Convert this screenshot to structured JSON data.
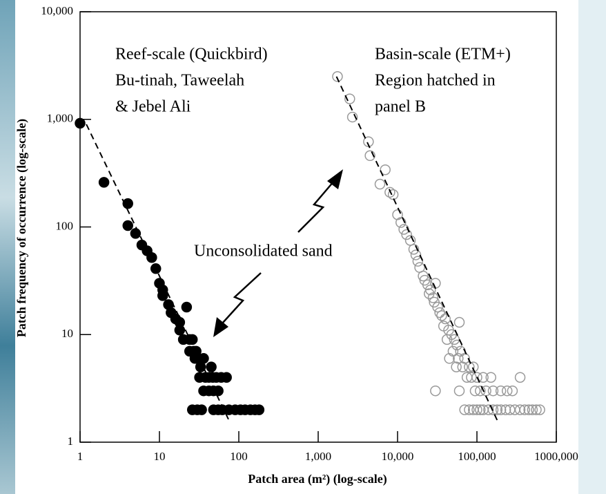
{
  "chart_data": {
    "type": "scatter",
    "xlabel": "Patch area (m²) (log-scale)",
    "ylabel": "Patch frequency of occurrence (log-scale)",
    "xscale": "log",
    "yscale": "log",
    "xlim": [
      1,
      1000000
    ],
    "ylim": [
      1,
      10000
    ],
    "xticks": [
      1,
      10,
      100,
      {
        "value": 1000,
        "label": "1,000"
      },
      {
        "value": 10000,
        "label": "10,000"
      },
      {
        "value": 100000,
        "label": "100,000"
      },
      {
        "value": 1000000,
        "label": "1000,000"
      }
    ],
    "yticks": [
      1,
      10,
      100,
      {
        "value": 1000,
        "label": "1,000"
      },
      {
        "value": 10000,
        "label": "10,000"
      }
    ],
    "annotations": [
      {
        "lines": [
          "Reef-scale (Quickbird)",
          "Bu-tinah, Taweelah",
          "& Jebel Ali"
        ]
      },
      {
        "lines": [
          "Basin-scale (ETM+)",
          "Region hatched in",
          "panel B"
        ]
      },
      {
        "lines": [
          "Unconsolidated sand"
        ]
      }
    ],
    "series": [
      {
        "color": "#000000",
        "filled": true,
        "x": [
          1,
          2,
          4,
          4,
          5,
          6,
          7,
          8,
          9,
          10,
          11,
          11,
          13,
          14,
          16,
          18,
          22,
          18,
          20,
          24,
          26,
          24,
          27,
          29,
          30,
          28,
          33,
          36,
          45,
          32,
          38,
          42,
          47,
          52,
          60,
          70,
          36,
          42,
          48,
          55,
          26,
          30,
          34,
          48,
          55,
          62,
          75,
          90,
          105,
          120,
          140,
          160,
          180
        ],
        "values": [
          920,
          260,
          165,
          103,
          87,
          68,
          60,
          52,
          41,
          30,
          26,
          23,
          19,
          16,
          14,
          13,
          18,
          11,
          9,
          9,
          9,
          7,
          7,
          7,
          6,
          6,
          5,
          6,
          5,
          4,
          4,
          4,
          4,
          4,
          4,
          4,
          3,
          3,
          3,
          3,
          2,
          2,
          2,
          2,
          2,
          2,
          2,
          2,
          2,
          2,
          2,
          2,
          2
        ]
      },
      {
        "color": "#999999",
        "filled": false,
        "x": [
          1750,
          2500,
          2700,
          4300,
          4500,
          7000,
          6000,
          8000,
          8800,
          10000,
          11000,
          12000,
          13000,
          14500,
          16000,
          17000,
          18000,
          19000,
          21000,
          22000,
          24000,
          26000,
          25000,
          28000,
          30000,
          29000,
          32000,
          34000,
          36000,
          40000,
          38000,
          44000,
          48000,
          42000,
          52000,
          56000,
          60000,
          50000,
          62000,
          70000,
          45000,
          58000,
          80000,
          66000,
          90000,
          55000,
          75000,
          100000,
          120000,
          150000,
          85000,
          350000,
          30000,
          60000,
          95000,
          110000,
          130000,
          160000,
          200000,
          240000,
          280000,
          70000,
          80000,
          90000,
          100000,
          110000,
          120000,
          140000,
          160000,
          180000,
          200000,
          230000,
          260000,
          300000,
          350000,
          400000,
          450000,
          500000,
          560000,
          620000
        ],
        "values": [
          2500,
          1550,
          1050,
          620,
          460,
          340,
          250,
          210,
          200,
          130,
          110,
          95,
          85,
          75,
          62,
          55,
          48,
          42,
          35,
          32,
          29,
          26,
          24,
          22,
          30,
          20,
          18,
          16,
          15,
          14,
          12,
          11,
          10,
          9,
          9,
          8,
          13,
          7,
          7,
          6,
          6,
          6,
          5,
          5,
          5,
          5,
          4,
          4,
          4,
          4,
          4,
          4,
          3,
          3,
          3,
          3,
          3,
          3,
          3,
          3,
          3,
          2,
          2,
          2,
          2,
          2,
          2,
          2,
          2,
          2,
          2,
          2,
          2,
          2,
          2,
          2,
          2,
          2,
          2,
          2
        ]
      }
    ],
    "fits": [
      {
        "x": [
          1.2,
          75
        ],
        "values": [
          900,
          1.6
        ]
      },
      {
        "x": [
          1700,
          180000
        ],
        "values": [
          2500,
          1.6
        ]
      }
    ]
  }
}
